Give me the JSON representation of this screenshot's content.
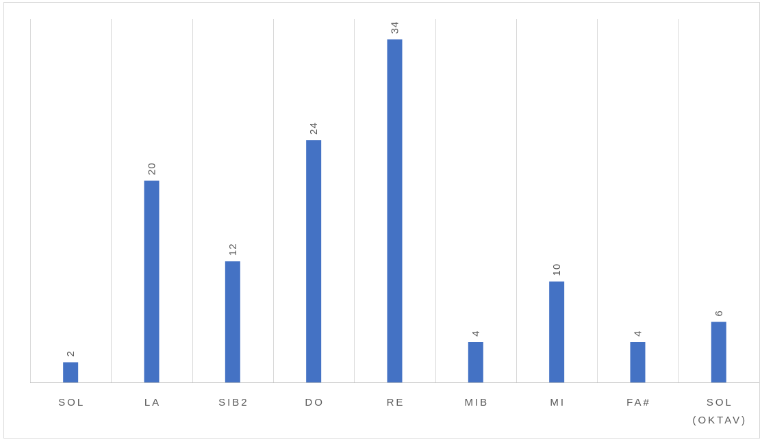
{
  "chart_data": {
    "type": "bar",
    "categories": [
      "SOL",
      "LA",
      "SIB2",
      "DO",
      "RE",
      "MIB",
      "MI",
      "FA#",
      "SOL (OKTAV)"
    ],
    "category_lines": [
      [
        "SOL"
      ],
      [
        "LA"
      ],
      [
        "SIB2"
      ],
      [
        "DO"
      ],
      [
        "RE"
      ],
      [
        "MIB"
      ],
      [
        "MI"
      ],
      [
        "FA#"
      ],
      [
        "SOL",
        "(OKTAV)"
      ]
    ],
    "values": [
      2,
      20,
      12,
      24,
      34,
      4,
      10,
      4,
      6
    ],
    "ylim": [
      0,
      36
    ],
    "data_labels": true,
    "data_label_rotation": "vertical",
    "grid": "vertical category separators",
    "legend": "none",
    "colors": {
      "bar": "#4472c4",
      "grid": "#d9d9d9",
      "axis": "#bfbfbf",
      "label": "#595959"
    }
  }
}
